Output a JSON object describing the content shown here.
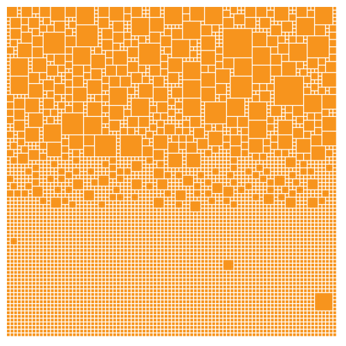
{
  "colors": {
    "background": "#ffffff",
    "tile": "#f7941d"
  },
  "mosaic": {
    "description_visible_text": "",
    "seed": 20240611
  }
}
